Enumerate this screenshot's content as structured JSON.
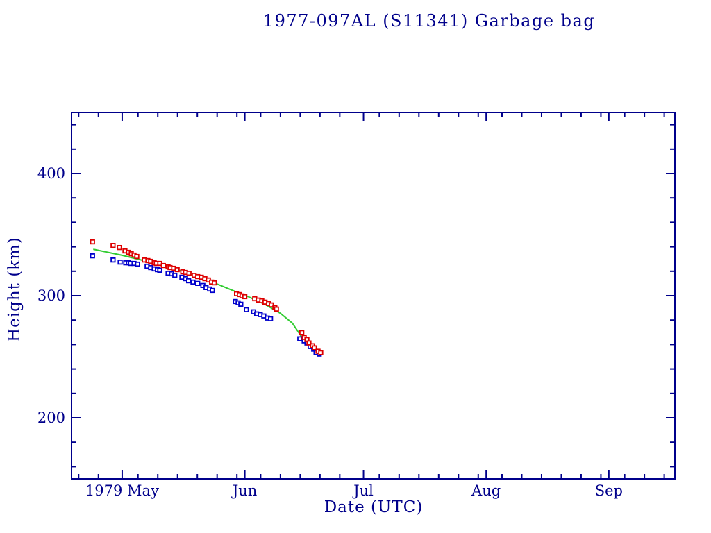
{
  "page": {
    "background_color": "#ffffff",
    "description": "Satellite orbital decay height-vs-date plot"
  },
  "title": "1977-097AL (S11341) Garbage bag",
  "colors": {
    "axis_and_text": "#00008b",
    "apogee_marker": "#dd0000",
    "perigee_marker": "#0000cc",
    "fit_line": "#33cc33"
  },
  "chart_data": {
    "type": "scatter",
    "title": "1977-097AL (S11341) Garbage bag",
    "xlabel": "Date (UTC)",
    "ylabel": "Height (km)",
    "grid": false,
    "legend": "none",
    "x_axis": {
      "unit": "days since 1979 May 1 (day 0 = May 1)",
      "range_days": [
        -12.8,
        139.7
      ],
      "major_ticks": [
        {
          "day": 0,
          "label": "1979 May"
        },
        {
          "day": 31,
          "label": "Jun"
        },
        {
          "day": 61,
          "label": "Jul"
        },
        {
          "day": 92,
          "label": "Aug"
        },
        {
          "day": 123,
          "label": "Sep"
        }
      ],
      "minor_tick_days": [
        -11,
        -6,
        4,
        9,
        14,
        19,
        24,
        29,
        35,
        40,
        45,
        50,
        55,
        65,
        70,
        75,
        80,
        85,
        90,
        96,
        101,
        106,
        111,
        116,
        121,
        127,
        132,
        137
      ]
    },
    "y_axis": {
      "unit": "km",
      "range_km": [
        150,
        450
      ],
      "major_ticks": [
        {
          "km": 200,
          "label": "200"
        },
        {
          "km": 300,
          "label": "300"
        },
        {
          "km": 400,
          "label": "400"
        }
      ],
      "minor_tick_kms": [
        160,
        180,
        220,
        240,
        260,
        280,
        320,
        340,
        360,
        380,
        420,
        440
      ]
    },
    "series": [
      {
        "name": "apogee-height",
        "marker": "open-square",
        "color": "#dd0000",
        "points": [
          [
            -7.5,
            344.0
          ],
          [
            -2.3,
            341.1
          ],
          [
            -0.7,
            339.4
          ],
          [
            0.7,
            336.6
          ],
          [
            1.6,
            335.5
          ],
          [
            2.3,
            334.3
          ],
          [
            3.0,
            333.2
          ],
          [
            3.7,
            332.1
          ],
          [
            5.6,
            329.2
          ],
          [
            6.5,
            328.7
          ],
          [
            7.2,
            328.1
          ],
          [
            8.1,
            327.0
          ],
          [
            8.6,
            326.4
          ],
          [
            9.5,
            326.4
          ],
          [
            10.4,
            324.7
          ],
          [
            11.6,
            323.6
          ],
          [
            12.1,
            323.0
          ],
          [
            13.0,
            322.4
          ],
          [
            13.9,
            321.3
          ],
          [
            15.3,
            319.6
          ],
          [
            16.0,
            319.0
          ],
          [
            16.9,
            318.4
          ],
          [
            18.2,
            316.7
          ],
          [
            19.1,
            315.6
          ],
          [
            20.0,
            315.1
          ],
          [
            20.9,
            313.9
          ],
          [
            21.8,
            312.8
          ],
          [
            22.6,
            311.1
          ],
          [
            23.3,
            310.5
          ],
          [
            28.9,
            301.5
          ],
          [
            29.6,
            300.9
          ],
          [
            30.3,
            299.8
          ],
          [
            31.0,
            299.2
          ],
          [
            33.5,
            297.5
          ],
          [
            34.4,
            296.4
          ],
          [
            35.3,
            295.8
          ],
          [
            36.1,
            294.7
          ],
          [
            37.0,
            293.6
          ],
          [
            37.7,
            292.4
          ],
          [
            38.6,
            290.2
          ],
          [
            39.0,
            289.0
          ],
          [
            45.4,
            269.8
          ],
          [
            46.0,
            265.8
          ],
          [
            46.7,
            264.1
          ],
          [
            47.2,
            261.3
          ],
          [
            48.1,
            259.0
          ],
          [
            48.6,
            257.3
          ],
          [
            49.5,
            254.5
          ],
          [
            50.2,
            253.3
          ]
        ]
      },
      {
        "name": "perigee-height",
        "marker": "open-square",
        "color": "#0000cc",
        "points": [
          [
            -7.5,
            332.6
          ],
          [
            -2.3,
            329.2
          ],
          [
            -0.5,
            327.5
          ],
          [
            0.9,
            326.9
          ],
          [
            1.6,
            326.9
          ],
          [
            2.1,
            326.4
          ],
          [
            3.0,
            326.4
          ],
          [
            3.9,
            325.8
          ],
          [
            6.3,
            324.1
          ],
          [
            7.2,
            323.0
          ],
          [
            8.1,
            321.9
          ],
          [
            8.9,
            321.3
          ],
          [
            9.5,
            320.8
          ],
          [
            11.6,
            318.4
          ],
          [
            12.5,
            317.9
          ],
          [
            13.3,
            316.7
          ],
          [
            15.1,
            315.1
          ],
          [
            16.0,
            313.9
          ],
          [
            16.8,
            312.2
          ],
          [
            17.9,
            311.1
          ],
          [
            19.1,
            310.0
          ],
          [
            20.4,
            308.3
          ],
          [
            21.2,
            306.6
          ],
          [
            22.1,
            305.4
          ],
          [
            22.8,
            304.3
          ],
          [
            28.6,
            295.2
          ],
          [
            29.3,
            294.1
          ],
          [
            30.0,
            293.0
          ],
          [
            31.4,
            288.5
          ],
          [
            33.2,
            286.8
          ],
          [
            34.0,
            285.1
          ],
          [
            34.9,
            284.5
          ],
          [
            35.8,
            283.4
          ],
          [
            36.7,
            281.7
          ],
          [
            37.5,
            281.1
          ],
          [
            44.9,
            264.7
          ],
          [
            46.0,
            263.0
          ],
          [
            46.7,
            261.3
          ],
          [
            47.5,
            258.4
          ],
          [
            48.4,
            256.2
          ],
          [
            49.0,
            253.3
          ],
          [
            49.8,
            252.2
          ]
        ]
      },
      {
        "name": "decay-fit-curve",
        "type": "line",
        "color": "#33cc33",
        "points": [
          [
            -7.3,
            338.0
          ],
          [
            0,
            333.0
          ],
          [
            7,
            327.5
          ],
          [
            14,
            321.0
          ],
          [
            21,
            313.5
          ],
          [
            27,
            305.5
          ],
          [
            32,
            299.0
          ],
          [
            36,
            293.0
          ],
          [
            40,
            285.5
          ],
          [
            43,
            277.5
          ],
          [
            45.3,
            266.5
          ]
        ]
      }
    ]
  }
}
